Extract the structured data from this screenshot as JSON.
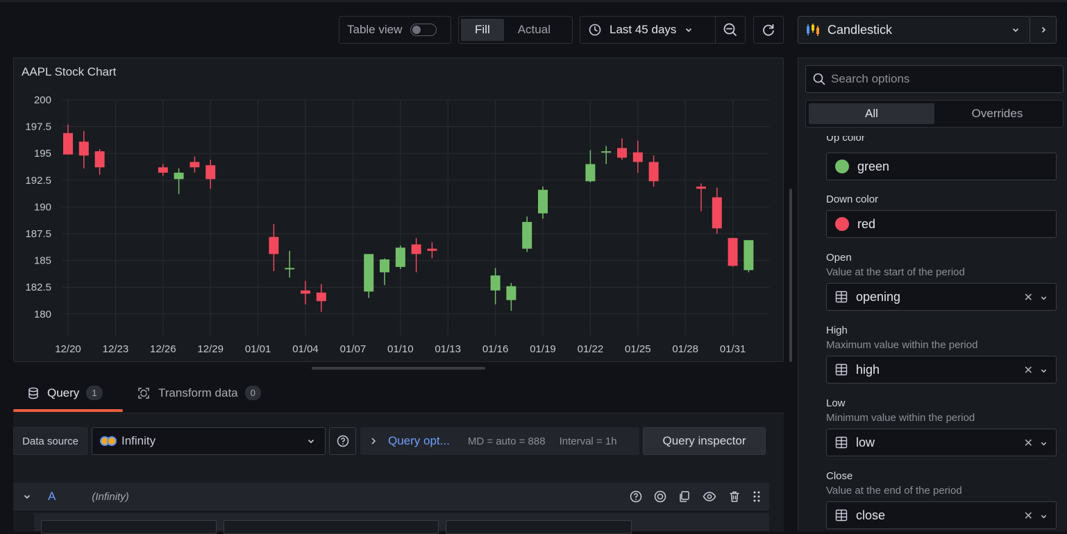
{
  "toolbar": {
    "table_view_label": "Table view",
    "fill_label": "Fill",
    "actual_label": "Actual",
    "time_range": "Last 45 days"
  },
  "panel": {
    "title": "AAPL Stock Chart"
  },
  "chart_data": {
    "type": "candlestick",
    "title": "AAPL Stock Chart",
    "ylim": [
      178,
      201
    ],
    "y_ticks": [
      200,
      197.5,
      195,
      192.5,
      190,
      187.5,
      185,
      182.5,
      180
    ],
    "x_ticks": [
      "12/20",
      "12/23",
      "12/26",
      "12/29",
      "01/01",
      "01/04",
      "01/07",
      "01/10",
      "01/13",
      "01/16",
      "01/19",
      "01/22",
      "01/25",
      "01/28",
      "01/31"
    ],
    "x_tick_days": [
      0,
      3,
      6,
      9,
      12,
      15,
      18,
      21,
      24,
      27,
      30,
      33,
      36,
      39,
      42
    ],
    "up_color": "#73bf69",
    "down_color": "#f2495c",
    "candles": [
      {
        "date": "12/20",
        "open": 196.9,
        "high": 197.7,
        "low": 194.9,
        "close": 194.9
      },
      {
        "date": "12/21",
        "open": 196.1,
        "high": 197.1,
        "low": 193.6,
        "close": 194.8
      },
      {
        "date": "12/22",
        "open": 195.2,
        "high": 195.4,
        "low": 193.0,
        "close": 193.7
      },
      {
        "date": "12/26",
        "open": 193.7,
        "high": 194.0,
        "low": 192.9,
        "close": 193.2
      },
      {
        "date": "12/27",
        "open": 192.6,
        "high": 193.6,
        "low": 191.2,
        "close": 193.2
      },
      {
        "date": "12/28",
        "open": 194.2,
        "high": 194.7,
        "low": 193.2,
        "close": 193.7
      },
      {
        "date": "12/29",
        "open": 193.9,
        "high": 194.4,
        "low": 191.7,
        "close": 192.6
      },
      {
        "date": "01/02",
        "open": 187.2,
        "high": 188.4,
        "low": 184.0,
        "close": 185.6
      },
      {
        "date": "01/03",
        "open": 184.3,
        "high": 185.9,
        "low": 183.4,
        "close": 184.3
      },
      {
        "date": "01/04",
        "open": 182.2,
        "high": 183.1,
        "low": 180.9,
        "close": 181.9
      },
      {
        "date": "01/05",
        "open": 182.0,
        "high": 182.8,
        "low": 180.2,
        "close": 181.2
      },
      {
        "date": "01/08",
        "open": 182.1,
        "high": 185.6,
        "low": 181.5,
        "close": 185.6
      },
      {
        "date": "01/09",
        "open": 183.9,
        "high": 185.2,
        "low": 182.7,
        "close": 185.1
      },
      {
        "date": "01/10",
        "open": 184.4,
        "high": 186.4,
        "low": 184.2,
        "close": 186.2
      },
      {
        "date": "01/11",
        "open": 186.5,
        "high": 187.1,
        "low": 183.9,
        "close": 185.6
      },
      {
        "date": "01/12",
        "open": 186.1,
        "high": 186.7,
        "low": 185.2,
        "close": 185.9
      },
      {
        "date": "01/16",
        "open": 182.2,
        "high": 184.3,
        "low": 180.9,
        "close": 183.6
      },
      {
        "date": "01/17",
        "open": 181.3,
        "high": 182.9,
        "low": 180.3,
        "close": 182.6
      },
      {
        "date": "01/18",
        "open": 186.1,
        "high": 189.1,
        "low": 185.8,
        "close": 188.6
      },
      {
        "date": "01/19",
        "open": 189.4,
        "high": 191.9,
        "low": 188.9,
        "close": 191.6
      },
      {
        "date": "01/22",
        "open": 192.4,
        "high": 195.3,
        "low": 192.3,
        "close": 194.0
      },
      {
        "date": "01/23",
        "open": 195.1,
        "high": 195.7,
        "low": 194.0,
        "close": 195.2
      },
      {
        "date": "01/24",
        "open": 195.5,
        "high": 196.4,
        "low": 194.4,
        "close": 194.6
      },
      {
        "date": "01/25",
        "open": 195.1,
        "high": 196.2,
        "low": 193.2,
        "close": 194.2
      },
      {
        "date": "01/26",
        "open": 194.2,
        "high": 194.8,
        "low": 191.9,
        "close": 192.4
      },
      {
        "date": "01/29",
        "open": 191.9,
        "high": 192.2,
        "low": 189.6,
        "close": 191.7
      },
      {
        "date": "01/30",
        "open": 190.9,
        "high": 191.8,
        "low": 187.5,
        "close": 188.0
      },
      {
        "date": "01/31",
        "open": 187.1,
        "high": 187.1,
        "low": 184.4,
        "close": 184.5
      },
      {
        "date": "02/01",
        "open": 184.1,
        "high": 186.9,
        "low": 183.9,
        "close": 186.9
      }
    ]
  },
  "query_tabs": {
    "query_label": "Query",
    "query_count": "1",
    "transform_label": "Transform data",
    "transform_count": "0"
  },
  "query": {
    "data_source_label": "Data source",
    "data_source": "Infinity",
    "options_label": "Query opt...",
    "md": "MD = auto = 888",
    "interval": "Interval = 1h",
    "inspector_label": "Query inspector",
    "ref_id": "A",
    "ref_source": "(Infinity)"
  },
  "sidebar": {
    "viz_name": "Candlestick",
    "search_placeholder": "Search options",
    "tab_all": "All",
    "tab_overrides": "Overrides",
    "up_color_label": "Up color",
    "up_color_value": "green",
    "down_color_label": "Down color",
    "down_color_value": "red",
    "open_label": "Open",
    "open_desc": "Value at the start of the period",
    "open_value": "opening",
    "high_label": "High",
    "high_desc": "Maximum value within the period",
    "high_value": "high",
    "low_label": "Low",
    "low_desc": "Minimum value within the period",
    "low_value": "low",
    "close_label": "Close",
    "close_desc": "Value at the end of the period",
    "close_value": "close"
  },
  "colors": {
    "accent_tab": "#f55f3e",
    "link_blue": "#6e9fff",
    "green": "#73bf69",
    "red": "#f2495c"
  }
}
